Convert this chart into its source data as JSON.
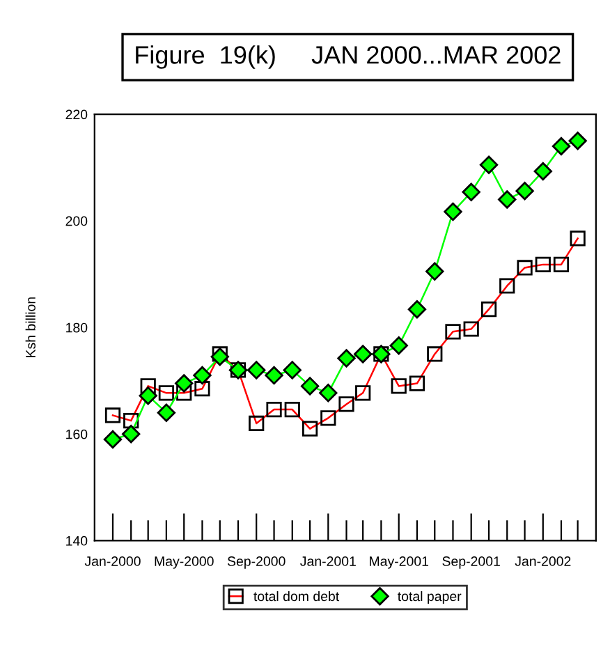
{
  "chart_data": {
    "type": "line",
    "title": "Figure  19(k)     JAN 2000...MAR 2002",
    "ylabel": "Ksh billion",
    "x": [
      "2000-01",
      "2000-02",
      "2000-03",
      "2000-04",
      "2000-05",
      "2000-06",
      "2000-07",
      "2000-08",
      "2000-09",
      "2000-10",
      "2000-11",
      "2000-12",
      "2001-01",
      "2001-02",
      "2001-03",
      "2001-04",
      "2001-05",
      "2001-06",
      "2001-07",
      "2001-08",
      "2001-09",
      "2001-10",
      "2001-11",
      "2001-12",
      "2002-01",
      "2002-02",
      "2002-03"
    ],
    "series": [
      {
        "name": "total dom debt",
        "color": "#ff0000",
        "marker": "square",
        "values": [
          163.5,
          162.5,
          169,
          167.7,
          167.7,
          168.5,
          175,
          172,
          162,
          164.6,
          164.6,
          161,
          163,
          165.6,
          167.7,
          175,
          169,
          169.5,
          175,
          179.2,
          179.7,
          183.4,
          187.8,
          191.2,
          191.8,
          191.8,
          196.7
        ]
      },
      {
        "name": "total paper",
        "color": "#00ff00",
        "marker": "diamond",
        "values": [
          159,
          160,
          167.2,
          164,
          169.5,
          171,
          174.5,
          172,
          172,
          171,
          172,
          169,
          167.7,
          174.2,
          175,
          175,
          176.6,
          183.4,
          190.5,
          201.7,
          205.4,
          210.5,
          204,
          205.6,
          209.3,
          214,
          215
        ]
      }
    ],
    "xlim": [
      "1999-12",
      "2002-04"
    ],
    "xticks": [
      {
        "value": "2000-01",
        "label": "Jan-2000"
      },
      {
        "value": "2000-02",
        "label": null
      },
      {
        "value": "2000-03",
        "label": null
      },
      {
        "value": "2000-04",
        "label": null
      },
      {
        "value": "2000-05",
        "label": "May-2000"
      },
      {
        "value": "2000-06",
        "label": null
      },
      {
        "value": "2000-07",
        "label": null
      },
      {
        "value": "2000-08",
        "label": null
      },
      {
        "value": "2000-09",
        "label": "Sep-2000"
      },
      {
        "value": "2000-10",
        "label": null
      },
      {
        "value": "2000-11",
        "label": null
      },
      {
        "value": "2000-12",
        "label": null
      },
      {
        "value": "2001-01",
        "label": "Jan-2001"
      },
      {
        "value": "2001-02",
        "label": null
      },
      {
        "value": "2001-03",
        "label": null
      },
      {
        "value": "2001-04",
        "label": null
      },
      {
        "value": "2001-05",
        "label": "May-2001"
      },
      {
        "value": "2001-06",
        "label": null
      },
      {
        "value": "2001-07",
        "label": null
      },
      {
        "value": "2001-08",
        "label": null
      },
      {
        "value": "2001-09",
        "label": "Sep-2001"
      },
      {
        "value": "2001-10",
        "label": null
      },
      {
        "value": "2001-11",
        "label": null
      },
      {
        "value": "2001-12",
        "label": null
      },
      {
        "value": "2002-01",
        "label": "Jan-2002"
      },
      {
        "value": "2002-02",
        "label": null
      },
      {
        "value": "2002-03",
        "label": null
      }
    ],
    "ylim": [
      140,
      220
    ],
    "yticks": [
      140,
      160,
      180,
      200,
      220
    ],
    "grid": false,
    "legend": "bottom",
    "line_style": "solid"
  }
}
